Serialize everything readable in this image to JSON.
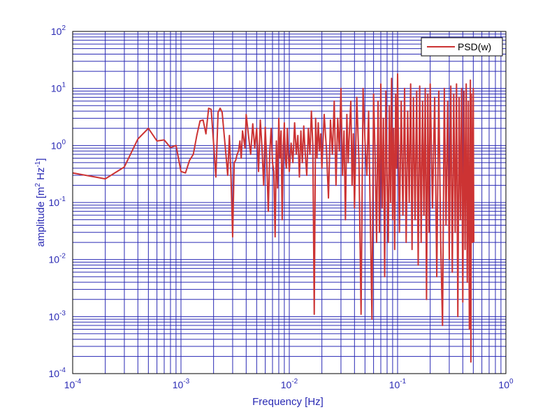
{
  "chart_data": {
    "type": "line",
    "scale": {
      "x": "log",
      "y": "log"
    },
    "xlim": [
      0.0001,
      1
    ],
    "ylim": [
      0.0001,
      100
    ],
    "xlabel": "Frequency  [Hz]",
    "ylabel": {
      "text": "amplitude  [m",
      "sup1": "2",
      "mid": " Hz",
      "sup2": "-1",
      "end": "]"
    },
    "x_ticks": [
      {
        "base": "10",
        "exp": "-4",
        "value": 0.0001
      },
      {
        "base": "10",
        "exp": "-3",
        "value": 0.001
      },
      {
        "base": "10",
        "exp": "-2",
        "value": 0.01
      },
      {
        "base": "10",
        "exp": "-1",
        "value": 0.1
      },
      {
        "base": "10",
        "exp": "0",
        "value": 1
      }
    ],
    "y_ticks": [
      {
        "base": "10",
        "exp": "-4",
        "value": 0.0001
      },
      {
        "base": "10",
        "exp": "-3",
        "value": 0.001
      },
      {
        "base": "10",
        "exp": "-2",
        "value": 0.01
      },
      {
        "base": "10",
        "exp": "-1",
        "value": 0.1
      },
      {
        "base": "10",
        "exp": "0",
        "value": 1
      },
      {
        "base": "10",
        "exp": "1",
        "value": 10
      },
      {
        "base": "10",
        "exp": "2",
        "value": 100
      }
    ],
    "grid": true,
    "legend_position": "top-right",
    "series": [
      {
        "name": "PSD(w)",
        "color": "#cc3333",
        "points": [
          [
            0.0001,
            0.33
          ],
          [
            0.0002,
            0.26
          ],
          [
            0.0003,
            0.42
          ],
          [
            0.0004,
            1.3
          ],
          [
            0.0005,
            2.0
          ],
          [
            0.0006,
            1.2
          ],
          [
            0.0007,
            1.25
          ],
          [
            0.0008,
            0.92
          ],
          [
            0.0009,
            1.0
          ],
          [
            0.001,
            0.35
          ],
          [
            0.0011,
            0.33
          ],
          [
            0.0012,
            0.55
          ],
          [
            0.0013,
            0.7
          ],
          [
            0.0014,
            1.5
          ],
          [
            0.0015,
            2.7
          ],
          [
            0.0016,
            2.8
          ],
          [
            0.0017,
            1.6
          ],
          [
            0.0018,
            4.5
          ],
          [
            0.0019,
            4.3
          ],
          [
            0.002,
            1.1
          ],
          [
            0.0021,
            0.28
          ],
          [
            0.0022,
            3.8
          ],
          [
            0.0023,
            4.5
          ],
          [
            0.0024,
            3.8
          ],
          [
            0.0025,
            1.6
          ],
          [
            0.0026,
            0.7
          ],
          [
            0.0027,
            0.3
          ],
          [
            0.0028,
            1.5
          ],
          [
            0.0029,
            0.26
          ],
          [
            0.003,
            0.025
          ],
          [
            0.0031,
            0.5
          ],
          [
            0.0032,
            0.55
          ],
          [
            0.0033,
            0.7
          ],
          [
            0.0034,
            0.8
          ],
          [
            0.0035,
            1.2
          ],
          [
            0.0036,
            0.6
          ],
          [
            0.0037,
            1.8
          ],
          [
            0.0038,
            1.3
          ],
          [
            0.0039,
            0.9
          ],
          [
            0.004,
            3.5
          ],
          [
            0.0042,
            1.5
          ],
          [
            0.0044,
            0.7
          ],
          [
            0.0046,
            2.4
          ],
          [
            0.0048,
            0.9
          ],
          [
            0.005,
            2.0
          ],
          [
            0.0052,
            0.35
          ],
          [
            0.0054,
            2.8
          ],
          [
            0.0056,
            0.9
          ],
          [
            0.0058,
            0.2
          ],
          [
            0.006,
            2.1
          ],
          [
            0.0062,
            0.5
          ],
          [
            0.0064,
            0.07
          ],
          [
            0.0066,
            0.75
          ],
          [
            0.0068,
            2.0
          ],
          [
            0.007,
            0.5
          ],
          [
            0.0072,
            0.35
          ],
          [
            0.0074,
            0.025
          ],
          [
            0.0076,
            1.2
          ],
          [
            0.0078,
            0.18
          ],
          [
            0.008,
            3.0
          ],
          [
            0.0082,
            0.6
          ],
          [
            0.0084,
            1.8
          ],
          [
            0.0086,
            0.05
          ],
          [
            0.0088,
            0.9
          ],
          [
            0.009,
            2.5
          ],
          [
            0.0092,
            0.6
          ],
          [
            0.0094,
            0.4
          ],
          [
            0.0096,
            2.0
          ],
          [
            0.0098,
            0.7
          ],
          [
            0.01,
            0.35
          ],
          [
            0.0104,
            1.1
          ],
          [
            0.0108,
            0.5
          ],
          [
            0.0112,
            2.5
          ],
          [
            0.0116,
            0.7
          ],
          [
            0.012,
            1.5
          ],
          [
            0.0124,
            0.28
          ],
          [
            0.0128,
            1.8
          ],
          [
            0.0132,
            0.5
          ],
          [
            0.0136,
            2.2
          ],
          [
            0.014,
            0.8
          ],
          [
            0.0145,
            0.3
          ],
          [
            0.015,
            2.0
          ],
          [
            0.0155,
            0.7
          ],
          [
            0.016,
            4.0
          ],
          [
            0.0165,
            1.0
          ],
          [
            0.017,
            0.0011
          ],
          [
            0.0175,
            3.0
          ],
          [
            0.018,
            0.6
          ],
          [
            0.0185,
            2.5
          ],
          [
            0.019,
            0.8
          ],
          [
            0.0195,
            1.6
          ],
          [
            0.02,
            0.4
          ],
          [
            0.021,
            3.5
          ],
          [
            0.022,
            0.9
          ],
          [
            0.023,
            0.12
          ],
          [
            0.024,
            2.8
          ],
          [
            0.025,
            0.7
          ],
          [
            0.026,
            6.0
          ],
          [
            0.027,
            0.2
          ],
          [
            0.028,
            3.0
          ],
          [
            0.029,
            0.8
          ],
          [
            0.03,
            10.0
          ],
          [
            0.031,
            0.3
          ],
          [
            0.032,
            1.8
          ],
          [
            0.033,
            0.05
          ],
          [
            0.034,
            3.5
          ],
          [
            0.035,
            0.5
          ],
          [
            0.036,
            2.0
          ],
          [
            0.037,
            6.0
          ],
          [
            0.038,
            0.2
          ],
          [
            0.039,
            1.6
          ],
          [
            0.04,
            0.08
          ],
          [
            0.042,
            7.0
          ],
          [
            0.044,
            0.5
          ],
          [
            0.046,
            0.0011
          ],
          [
            0.048,
            10.0
          ],
          [
            0.05,
            1.2
          ],
          [
            0.052,
            0.3
          ],
          [
            0.054,
            4.0
          ],
          [
            0.056,
            0.05
          ],
          [
            0.058,
            0.0009
          ],
          [
            0.06,
            8.0
          ],
          [
            0.062,
            0.7
          ],
          [
            0.064,
            0.02
          ],
          [
            0.066,
            6.0
          ],
          [
            0.068,
            0.03
          ],
          [
            0.07,
            12.0
          ],
          [
            0.072,
            0.08
          ],
          [
            0.074,
            3.0
          ],
          [
            0.076,
            0.005
          ],
          [
            0.078,
            9.0
          ],
          [
            0.08,
            0.25
          ],
          [
            0.082,
            0.02
          ],
          [
            0.084,
            5.0
          ],
          [
            0.086,
            0.1
          ],
          [
            0.088,
            15.0
          ],
          [
            0.09,
            0.05
          ],
          [
            0.092,
            2.0
          ],
          [
            0.094,
            0.015
          ],
          [
            0.096,
            8.0
          ],
          [
            0.098,
            0.4
          ],
          [
            0.1,
            18.0
          ],
          [
            0.104,
            0.03
          ],
          [
            0.108,
            6.0
          ],
          [
            0.112,
            0.06
          ],
          [
            0.116,
            10.0
          ],
          [
            0.12,
            0.02
          ],
          [
            0.124,
            4.0
          ],
          [
            0.128,
            0.1
          ],
          [
            0.132,
            12.0
          ],
          [
            0.136,
            0.015
          ],
          [
            0.14,
            7.0
          ],
          [
            0.145,
            0.05
          ],
          [
            0.15,
            9.0
          ],
          [
            0.155,
            0.008
          ],
          [
            0.16,
            11.0
          ],
          [
            0.165,
            0.02
          ],
          [
            0.17,
            6.0
          ],
          [
            0.175,
            0.06
          ],
          [
            0.18,
            10.0
          ],
          [
            0.185,
            0.002
          ],
          [
            0.19,
            8.0
          ],
          [
            0.195,
            0.03
          ],
          [
            0.2,
            12.0
          ],
          [
            0.21,
            0.08
          ],
          [
            0.22,
            7.0
          ],
          [
            0.23,
            0.005
          ],
          [
            0.24,
            9.0
          ],
          [
            0.25,
            0.02
          ],
          [
            0.26,
            0.0007
          ],
          [
            0.27,
            10.0
          ],
          [
            0.28,
            0.04
          ],
          [
            0.29,
            6.0
          ],
          [
            0.3,
            0.01
          ],
          [
            0.31,
            11.0
          ],
          [
            0.32,
            0.006
          ],
          [
            0.33,
            8.0
          ],
          [
            0.34,
            0.03
          ],
          [
            0.35,
            12.0
          ],
          [
            0.36,
            0.001
          ],
          [
            0.37,
            7.0
          ],
          [
            0.38,
            0.05
          ],
          [
            0.39,
            10.0
          ],
          [
            0.4,
            0.0018
          ],
          [
            0.41,
            9.0
          ],
          [
            0.42,
            0.015
          ],
          [
            0.43,
            12.0
          ],
          [
            0.44,
            0.004
          ],
          [
            0.45,
            6.0
          ],
          [
            0.46,
            0.0006
          ],
          [
            0.47,
            14.0
          ],
          [
            0.475,
            0.00016
          ],
          [
            0.48,
            8.0
          ],
          [
            0.49,
            0.02
          ],
          [
            0.5,
            10.0
          ],
          [
            0.505,
            0.02
          ]
        ]
      }
    ]
  }
}
